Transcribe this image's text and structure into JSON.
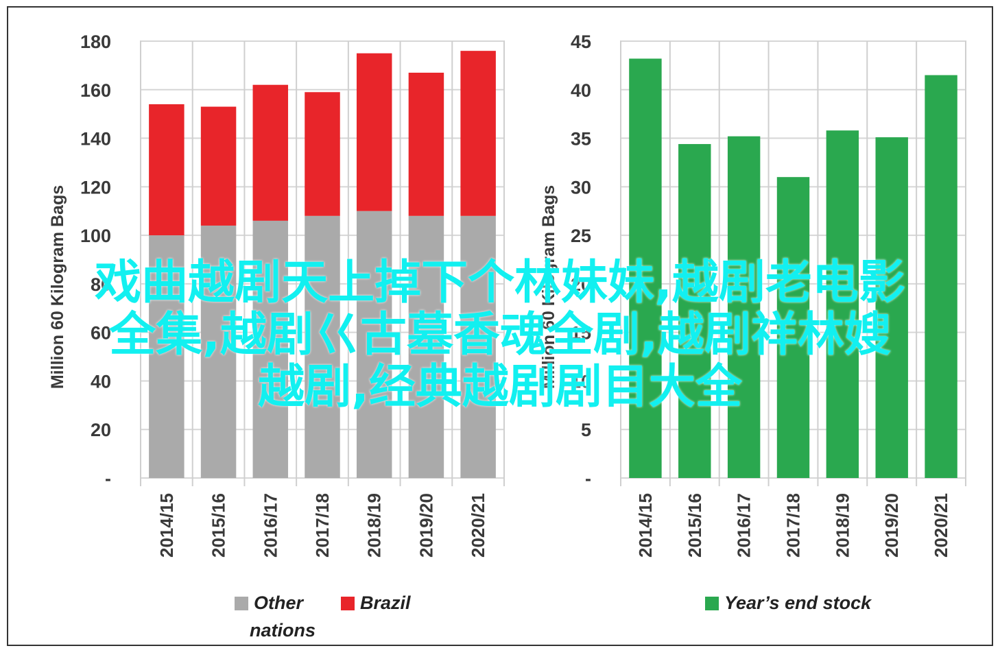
{
  "overlay_lines": [
    "戏曲越剧天上掉下个林妹妹,越剧老电影",
    "全集,越剧巜古墓香魂全剧,越剧祥林嫂",
    "越剧,经典越剧剧目大全"
  ],
  "chart_data": [
    {
      "type": "bar",
      "stacked": true,
      "categories": [
        "2014/15",
        "2015/16",
        "2016/17",
        "2017/18",
        "2018/19",
        "2019/20",
        "2020/21"
      ],
      "series": [
        {
          "name": "Other nations",
          "color": "#aaaaaa",
          "values": [
            100,
            104,
            106,
            108,
            110,
            108,
            108
          ]
        },
        {
          "name": "Brazil",
          "color": "#e8252a",
          "values": [
            54,
            49,
            56,
            51,
            65,
            59,
            68
          ]
        }
      ],
      "ylabel": "Million 60 Kilogram Bags",
      "ylim": [
        0,
        180
      ],
      "yticks": [
        0,
        20,
        40,
        60,
        80,
        100,
        120,
        140,
        160,
        180
      ],
      "ytick_labels": [
        "-",
        "20",
        "40",
        "60",
        "80",
        "100",
        "120",
        "140",
        "160",
        "180"
      ],
      "grid": true,
      "legend_position": "bottom",
      "legend": [
        {
          "label_line1": "Other",
          "label_line2": "nations",
          "color": "#aaaaaa"
        },
        {
          "label_line1": "Brazil",
          "label_line2": "",
          "color": "#e8252a"
        }
      ]
    },
    {
      "type": "bar",
      "categories": [
        "2014/15",
        "2015/16",
        "2016/17",
        "2017/18",
        "2018/19",
        "2019/20",
        "2020/21"
      ],
      "series": [
        {
          "name": "Year’s end stock",
          "color": "#2aa84f",
          "values": [
            43.2,
            34.4,
            35.2,
            31.0,
            35.8,
            35.1,
            41.5
          ]
        }
      ],
      "ylabel": "Million 60 Kilogram Bags",
      "ylim": [
        0,
        45
      ],
      "yticks": [
        0,
        5,
        10,
        15,
        20,
        25,
        30,
        35,
        40,
        45
      ],
      "ytick_labels": [
        "-",
        "5",
        "10",
        "15",
        "20",
        "25",
        "30",
        "35",
        "40",
        "45"
      ],
      "grid": true,
      "legend_position": "bottom",
      "legend": [
        {
          "label_line1": "Year’s end stock",
          "label_line2": "",
          "color": "#2aa84f"
        }
      ]
    }
  ]
}
